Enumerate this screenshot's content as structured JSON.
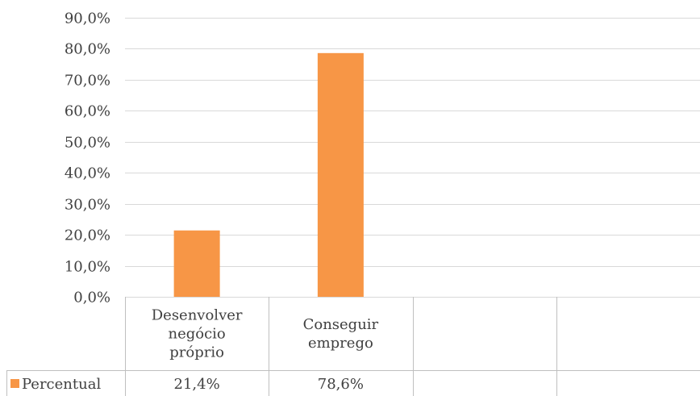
{
  "chart_data": {
    "type": "bar",
    "categories": [
      [
        "Desenvolver",
        "negócio",
        "próprio"
      ],
      [
        "Conseguir",
        "emprego"
      ],
      [],
      []
    ],
    "series": [
      {
        "name": "Percentual",
        "values": [
          21.4,
          78.6,
          null,
          null
        ],
        "labels": [
          "21,4%",
          "78,6%",
          "",
          ""
        ],
        "color": "#f79646"
      }
    ],
    "y_ticks": [
      "0,0%",
      "10,0%",
      "20,0%",
      "30,0%",
      "40,0%",
      "50,0%",
      "60,0%",
      "70,0%",
      "80,0%",
      "90,0%"
    ],
    "ylim": [
      0,
      90
    ],
    "grid": true,
    "legend": "data-table",
    "title": "",
    "xlabel": "",
    "ylabel": ""
  }
}
